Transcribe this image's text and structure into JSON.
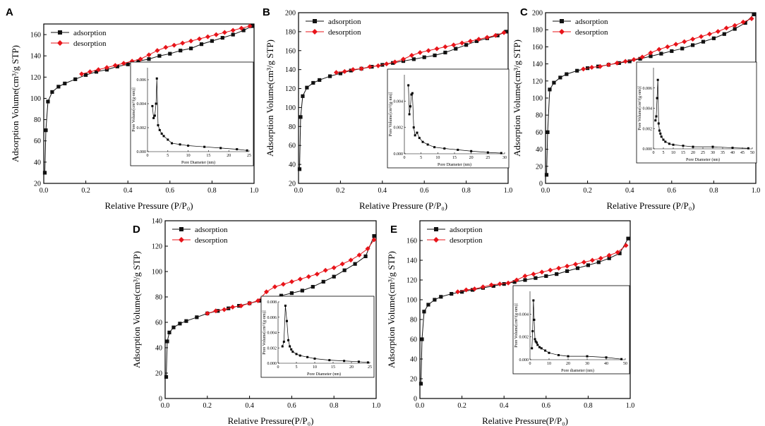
{
  "figure": {
    "panels": [
      "A",
      "B",
      "C",
      "D",
      "E"
    ]
  },
  "colors": {
    "adsorption": "#111111",
    "desorption": "#e8141a"
  },
  "chart_data": [
    {
      "panel": "A",
      "type": "scatter",
      "xlabel": "Relative Pressure (P/P₀)",
      "ylabel": "Adsorption Volume(cm³/g STP)",
      "xlim": [
        0,
        1.0
      ],
      "ylim": [
        20,
        170
      ],
      "xticks": [
        "0.0",
        "0.2",
        "0.4",
        "0.6",
        "0.8",
        "1.0"
      ],
      "yticks": [
        "20",
        "40",
        "60",
        "80",
        "100",
        "120",
        "140",
        "160"
      ],
      "legend": [
        "adsorption",
        "desorption"
      ],
      "adsorption": {
        "x": [
          0.005,
          0.01,
          0.02,
          0.04,
          0.07,
          0.1,
          0.15,
          0.2,
          0.25,
          0.3,
          0.35,
          0.4,
          0.45,
          0.5,
          0.55,
          0.6,
          0.65,
          0.7,
          0.75,
          0.8,
          0.85,
          0.9,
          0.95,
          0.99
        ],
        "y": [
          30,
          70,
          97,
          106,
          111,
          114,
          118,
          122,
          125,
          127,
          130,
          132,
          135,
          137,
          140,
          142,
          145,
          147,
          151,
          154,
          157,
          160,
          164,
          168
        ]
      },
      "desorption": {
        "x": [
          0.18,
          0.22,
          0.26,
          0.3,
          0.34,
          0.38,
          0.42,
          0.46,
          0.5,
          0.54,
          0.58,
          0.62,
          0.66,
          0.7,
          0.74,
          0.78,
          0.82,
          0.86,
          0.9,
          0.94,
          0.98
        ],
        "y": [
          123,
          125,
          127,
          129,
          131,
          133,
          135,
          137,
          141,
          145,
          148,
          150,
          152,
          154,
          156,
          158,
          160,
          162,
          164,
          166,
          168
        ]
      },
      "inset": {
        "xlabel": "Pore Diameter (nm)",
        "ylabel": "Pore Volume[cm³/(g·nm)]",
        "xlim": [
          0,
          25
        ],
        "ylim": [
          0,
          0.007
        ],
        "xticks": [
          "0",
          "5",
          "10",
          "15",
          "20",
          "25"
        ],
        "yticks": [
          "0.000",
          "0.002",
          "0.004",
          "0.006"
        ],
        "x": [
          1.2,
          1.5,
          1.8,
          2.1,
          2.3,
          2.6,
          3,
          3.5,
          4,
          5,
          6,
          8,
          10,
          14,
          18,
          22,
          24.5
        ],
        "y": [
          0.0038,
          0.0028,
          0.003,
          0.004,
          0.0061,
          0.0022,
          0.0018,
          0.0015,
          0.0013,
          0.001,
          0.0007,
          0.0006,
          0.0005,
          0.0004,
          0.0003,
          0.0002,
          0.0001
        ]
      }
    },
    {
      "panel": "B",
      "type": "scatter",
      "xlabel": "Relative Pressure (P/P₀)",
      "ylabel": "Adsorption Volume(cm³/g STP)",
      "xlim": [
        0,
        1.0
      ],
      "ylim": [
        20,
        200
      ],
      "xticks": [
        "0.0",
        "0.2",
        "0.4",
        "0.6",
        "0.8",
        "1.0"
      ],
      "yticks": [
        "20",
        "40",
        "60",
        "80",
        "100",
        "120",
        "140",
        "160",
        "180",
        "200"
      ],
      "legend": [
        "adsorption",
        "desorption"
      ],
      "adsorption": {
        "x": [
          0.005,
          0.01,
          0.02,
          0.04,
          0.07,
          0.1,
          0.15,
          0.2,
          0.25,
          0.3,
          0.35,
          0.4,
          0.45,
          0.5,
          0.55,
          0.6,
          0.65,
          0.7,
          0.75,
          0.8,
          0.85,
          0.9,
          0.95,
          0.99
        ],
        "y": [
          35,
          90,
          112,
          121,
          126,
          129,
          133,
          136,
          139,
          141,
          143,
          145,
          147,
          149,
          151,
          153,
          155,
          158,
          162,
          166,
          170,
          173,
          176,
          180
        ]
      },
      "desorption": {
        "x": [
          0.18,
          0.22,
          0.26,
          0.3,
          0.34,
          0.38,
          0.42,
          0.46,
          0.5,
          0.54,
          0.58,
          0.62,
          0.66,
          0.7,
          0.74,
          0.78,
          0.82,
          0.86,
          0.9,
          0.94,
          0.98
        ],
        "y": [
          137,
          138,
          140,
          141,
          143,
          144,
          146,
          148,
          151,
          155,
          158,
          160,
          162,
          164,
          166,
          168,
          170,
          172,
          174,
          176,
          179
        ]
      },
      "inset": {
        "xlabel": "Pore Diameter (nm)",
        "ylabel": "Pore Volume[cm³/(g·nm)]",
        "xlim": [
          0,
          30
        ],
        "ylim": [
          0,
          0.006
        ],
        "xticks": [
          "0",
          "5",
          "10",
          "15",
          "20",
          "25",
          "30"
        ],
        "yticks": [
          "0.000",
          "0.002",
          "0.004"
        ],
        "x": [
          1.2,
          1.5,
          1.8,
          2.1,
          2.4,
          2.8,
          3.2,
          3.8,
          4.5,
          5.5,
          7,
          9,
          12,
          16,
          20,
          25,
          29
        ],
        "y": [
          0.0052,
          0.003,
          0.0036,
          0.0045,
          0.0046,
          0.002,
          0.0014,
          0.0016,
          0.0012,
          0.0009,
          0.0007,
          0.0005,
          0.0004,
          0.0003,
          0.0002,
          0.0001,
          5e-05
        ]
      }
    },
    {
      "panel": "C",
      "type": "scatter",
      "xlabel": "Relative Pressure (P/P₀)",
      "ylabel": "Adsorption Volume(cm³/g STP)",
      "xlim": [
        0,
        1.0
      ],
      "ylim": [
        0,
        200
      ],
      "xticks": [
        "0.0",
        "0.2",
        "0.4",
        "0.6",
        "0.8",
        "1.0"
      ],
      "yticks": [
        "0",
        "20",
        "40",
        "60",
        "80",
        "100",
        "120",
        "140",
        "160",
        "180",
        "200"
      ],
      "legend": [
        "adsorption",
        "desorption"
      ],
      "adsorption": {
        "x": [
          0.005,
          0.01,
          0.02,
          0.04,
          0.07,
          0.1,
          0.15,
          0.2,
          0.25,
          0.3,
          0.35,
          0.4,
          0.45,
          0.5,
          0.55,
          0.6,
          0.65,
          0.7,
          0.75,
          0.8,
          0.85,
          0.9,
          0.95,
          0.99
        ],
        "y": [
          10,
          60,
          110,
          118,
          124,
          128,
          132,
          135,
          137,
          139,
          141,
          143,
          146,
          149,
          152,
          155,
          158,
          162,
          166,
          170,
          175,
          181,
          188,
          198
        ]
      },
      "desorption": {
        "x": [
          0.18,
          0.22,
          0.26,
          0.3,
          0.34,
          0.38,
          0.42,
          0.46,
          0.5,
          0.54,
          0.58,
          0.62,
          0.66,
          0.7,
          0.74,
          0.78,
          0.82,
          0.86,
          0.9,
          0.94,
          0.98
        ],
        "y": [
          134,
          136,
          137,
          139,
          141,
          143,
          145,
          148,
          153,
          157,
          160,
          163,
          166,
          169,
          172,
          175,
          178,
          182,
          185,
          189,
          193
        ]
      },
      "inset": {
        "xlabel": "Pore Diameter (nm)",
        "ylabel": "Pore Volume[cm³/(g·nm)]",
        "xlim": [
          0,
          50
        ],
        "ylim": [
          0,
          0.008
        ],
        "xticks": [
          "0",
          "5",
          "10",
          "15",
          "20",
          "25",
          "30",
          "35",
          "40",
          "45",
          "50"
        ],
        "yticks": [
          "0.000",
          "0.002",
          "0.004",
          "0.006"
        ],
        "x": [
          1.0,
          1.4,
          1.8,
          2.2,
          2.6,
          3,
          3.5,
          4,
          5,
          6,
          8,
          10,
          15,
          20,
          30,
          40,
          48
        ],
        "y": [
          0.0028,
          0.0032,
          0.005,
          0.0068,
          0.0025,
          0.0018,
          0.0015,
          0.0012,
          0.0009,
          0.0007,
          0.0005,
          0.0004,
          0.0003,
          0.0002,
          0.0002,
          0.0001,
          5e-05
        ]
      }
    },
    {
      "panel": "D",
      "type": "scatter",
      "xlabel": "Relative Pressure(P/P₀)",
      "ylabel": "Adsorption Volume(cm³/g STP)",
      "xlim": [
        0,
        1.0
      ],
      "ylim": [
        0,
        140
      ],
      "xticks": [
        "0.0",
        "0.2",
        "0.4",
        "0.6",
        "0.8",
        "1.0"
      ],
      "yticks": [
        "0",
        "20",
        "40",
        "60",
        "80",
        "100",
        "120",
        "140"
      ],
      "legend": [
        "adsorption",
        "desorption"
      ],
      "adsorption": {
        "x": [
          0.005,
          0.01,
          0.02,
          0.04,
          0.07,
          0.1,
          0.15,
          0.2,
          0.25,
          0.3,
          0.35,
          0.4,
          0.45,
          0.5,
          0.55,
          0.6,
          0.65,
          0.7,
          0.75,
          0.8,
          0.85,
          0.9,
          0.95,
          0.99
        ],
        "y": [
          17,
          45,
          52,
          56,
          59,
          61,
          64,
          67,
          69,
          71,
          73,
          75,
          77,
          79,
          81,
          83,
          85,
          88,
          92,
          96,
          101,
          106,
          112,
          128
        ]
      },
      "desorption": {
        "x": [
          0.2,
          0.24,
          0.28,
          0.32,
          0.36,
          0.4,
          0.44,
          0.48,
          0.52,
          0.56,
          0.6,
          0.64,
          0.68,
          0.72,
          0.76,
          0.8,
          0.84,
          0.88,
          0.92,
          0.96,
          0.99
        ],
        "y": [
          67,
          69,
          70,
          72,
          73,
          75,
          77,
          84,
          88,
          90,
          92,
          94,
          96,
          98,
          101,
          103,
          106,
          109,
          113,
          118,
          125
        ]
      },
      "inset": {
        "xlabel": "Pore Diameter (nm)",
        "ylabel": "Pore Volume[cm³/(g·nm)]",
        "xlim": [
          0,
          25
        ],
        "ylim": [
          0,
          0.008
        ],
        "xticks": [
          "0",
          "5",
          "10",
          "15",
          "20",
          "25"
        ],
        "yticks": [
          "0.000",
          "0.002",
          "0.004",
          "0.006",
          "0.008"
        ],
        "x": [
          1.2,
          1.6,
          2.0,
          2.4,
          2.8,
          3.2,
          3.6,
          4,
          5,
          6,
          8,
          10,
          14,
          18,
          22,
          24.5
        ],
        "y": [
          0.0022,
          0.0028,
          0.0075,
          0.0055,
          0.003,
          0.0022,
          0.0018,
          0.0015,
          0.0012,
          0.001,
          0.0008,
          0.0006,
          0.0004,
          0.0003,
          0.0002,
          0.0001
        ]
      }
    },
    {
      "panel": "E",
      "type": "scatter",
      "xlabel": "Relative Pressure(P/P₀)",
      "ylabel": "Adsorption Volume(cm³/g STP)",
      "xlim": [
        0,
        1.0
      ],
      "ylim": [
        0,
        180
      ],
      "xticks": [
        "0.0",
        "0.2",
        "0.4",
        "0.6",
        "0.8",
        "1.0"
      ],
      "yticks": [
        "0",
        "20",
        "40",
        "60",
        "80",
        "100",
        "120",
        "140",
        "160"
      ],
      "legend": [
        "adsorption",
        "desorption"
      ],
      "adsorption": {
        "x": [
          0.005,
          0.01,
          0.02,
          0.04,
          0.07,
          0.1,
          0.15,
          0.2,
          0.25,
          0.3,
          0.35,
          0.4,
          0.45,
          0.5,
          0.55,
          0.6,
          0.65,
          0.7,
          0.75,
          0.8,
          0.85,
          0.9,
          0.95,
          0.99
        ],
        "y": [
          15,
          60,
          88,
          95,
          100,
          103,
          106,
          108,
          110,
          112,
          114,
          116,
          118,
          120,
          122,
          124,
          126,
          129,
          132,
          135,
          138,
          142,
          147,
          162
        ]
      },
      "desorption": {
        "x": [
          0.18,
          0.22,
          0.26,
          0.3,
          0.34,
          0.38,
          0.42,
          0.46,
          0.5,
          0.54,
          0.58,
          0.62,
          0.66,
          0.7,
          0.74,
          0.78,
          0.82,
          0.86,
          0.9,
          0.94,
          0.98
        ],
        "y": [
          108,
          110,
          111,
          113,
          115,
          116,
          117,
          120,
          124,
          126,
          128,
          130,
          132,
          134,
          136,
          138,
          140,
          142,
          145,
          148,
          155
        ]
      },
      "inset": {
        "xlabel": "Pore diameter (nm)",
        "ylabel": "Pore Volume[cm³/(g·nm)]",
        "xlim": [
          0,
          50
        ],
        "ylim": [
          0,
          0.006
        ],
        "xticks": [
          "0",
          "10",
          "20",
          "30",
          "40",
          "50"
        ],
        "yticks": [
          "0.000",
          "0.002",
          "0.004"
        ],
        "x": [
          1.0,
          1.4,
          1.8,
          2.2,
          2.6,
          3,
          3.5,
          4,
          5,
          6,
          8,
          10,
          15,
          20,
          30,
          40,
          48
        ],
        "y": [
          0.001,
          0.0025,
          0.0052,
          0.0035,
          0.0018,
          0.0016,
          0.0015,
          0.0013,
          0.0011,
          0.001,
          0.0008,
          0.0006,
          0.0004,
          0.0003,
          0.0003,
          0.0002,
          5e-05
        ]
      }
    }
  ]
}
